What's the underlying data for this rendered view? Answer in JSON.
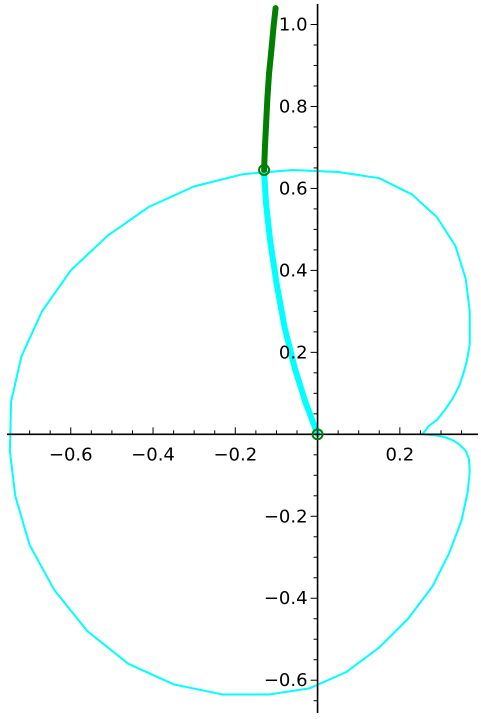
{
  "chart_data": {
    "type": "line",
    "title": "",
    "xlabel": "",
    "ylabel": "",
    "xlim": [
      -0.755,
      0.39
    ],
    "ylim": [
      -0.68,
      1.05
    ],
    "grid": false,
    "legend": "none",
    "axes_style": "centered-spines",
    "x_ticks": [
      {
        "value": -0.6,
        "label": "−0.6"
      },
      {
        "value": -0.4,
        "label": "−0.4"
      },
      {
        "value": -0.2,
        "label": "−0.2"
      },
      {
        "value": 0.2,
        "label": "0.2"
      }
    ],
    "y_ticks": [
      {
        "value": 1.0,
        "label": "1.0"
      },
      {
        "value": 0.8,
        "label": "0.8"
      },
      {
        "value": 0.6,
        "label": "0.6"
      },
      {
        "value": 0.4,
        "label": "0.4"
      },
      {
        "value": 0.2,
        "label": "0.2"
      },
      {
        "value": -0.2,
        "label": "−0.2"
      },
      {
        "value": -0.4,
        "label": "−0.4"
      },
      {
        "value": -0.6,
        "label": "−0.6"
      }
    ],
    "series": [
      {
        "color": "#00ffff",
        "style": "thin",
        "x": [
          0.255,
          0.27,
          0.29,
          0.31,
          0.33,
          0.345,
          0.355,
          0.363,
          0.37,
          0.37,
          0.36,
          0.335,
          0.29,
          0.23,
          0.15,
          0.05,
          -0.06,
          -0.18,
          -0.3,
          -0.41,
          -0.51,
          -0.6,
          -0.67,
          -0.72,
          -0.745,
          -0.748,
          -0.735,
          -0.7,
          -0.64,
          -0.56,
          -0.46,
          -0.35,
          -0.23,
          -0.12,
          -0.02,
          0.07,
          0.15,
          0.22,
          0.28,
          0.32,
          0.35,
          0.365,
          0.37,
          0.368,
          0.36,
          0.345,
          0.33,
          0.31,
          0.29,
          0.27,
          0.255
        ],
        "y": [
          0.0,
          0.02,
          0.035,
          0.06,
          0.09,
          0.12,
          0.15,
          0.18,
          0.22,
          0.3,
          0.38,
          0.46,
          0.53,
          0.585,
          0.625,
          0.64,
          0.645,
          0.635,
          0.605,
          0.555,
          0.485,
          0.4,
          0.3,
          0.19,
          0.08,
          -0.04,
          -0.15,
          -0.27,
          -0.38,
          -0.48,
          -0.56,
          -0.61,
          -0.635,
          -0.635,
          -0.62,
          -0.58,
          -0.52,
          -0.45,
          -0.37,
          -0.29,
          -0.21,
          -0.14,
          -0.09,
          -0.06,
          -0.04,
          -0.025,
          -0.015,
          -0.007,
          -0.003,
          -0.001,
          0.0
        ]
      },
      {
        "color": "#00ffff",
        "style": "thick",
        "x": [
          0.0,
          -0.03,
          -0.055,
          -0.08,
          -0.1,
          -0.115,
          -0.125,
          -0.13
        ],
        "y": [
          0.0,
          0.08,
          0.16,
          0.26,
          0.37,
          0.47,
          0.56,
          0.64
        ]
      },
      {
        "color": "#007f00",
        "style": "thick",
        "x": [
          -0.13,
          -0.128,
          -0.125,
          -0.122,
          -0.118,
          -0.112,
          -0.107,
          -0.102
        ],
        "y": [
          0.645,
          0.7,
          0.76,
          0.82,
          0.88,
          0.94,
          0.995,
          1.04
        ]
      }
    ],
    "points": [
      {
        "x": 0.0,
        "y": 0.0,
        "color": "#007f00"
      },
      {
        "x": -0.13,
        "y": 0.645,
        "color": "#007f00"
      }
    ]
  }
}
